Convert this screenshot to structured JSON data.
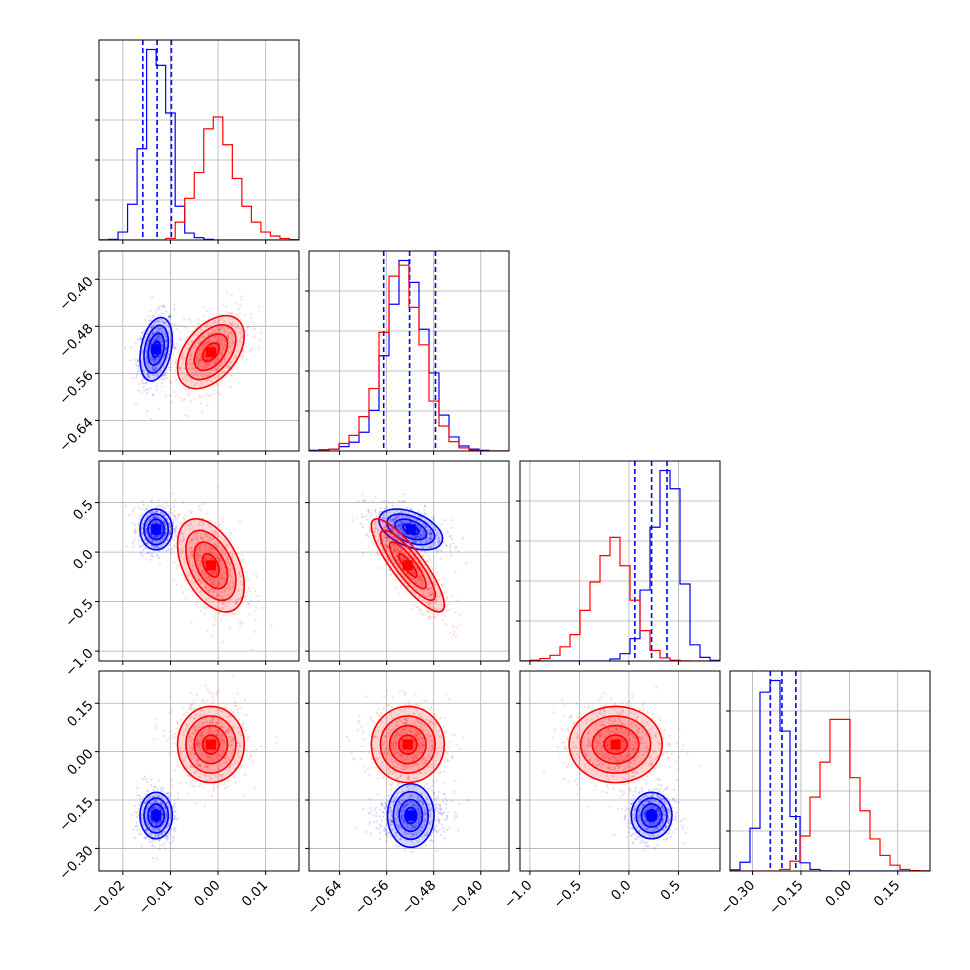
{
  "chart_data": {
    "type": "corner",
    "title": "",
    "legend": "none",
    "grid": true,
    "colors": {
      "blue": "#0000ff",
      "red": "#ff0000",
      "grid": "#b0b0b0",
      "axes": "#000000"
    },
    "params": [
      {
        "range": [
          -0.025,
          0.017
        ],
        "ticks": [
          -0.02,
          -0.01,
          0.0,
          0.01
        ],
        "tick_labels": [
          "−0.02",
          "−0.01",
          "0.00",
          "0.01"
        ]
      },
      {
        "range": [
          -0.692,
          -0.352
        ],
        "ticks": [
          -0.64,
          -0.56,
          -0.48,
          -0.4
        ],
        "tick_labels": [
          "−0.64",
          "−0.56",
          "−0.48",
          "−0.40"
        ]
      },
      {
        "range": [
          -1.1,
          0.92
        ],
        "ticks": [
          -1.0,
          -0.5,
          0.0,
          0.5
        ],
        "tick_labels": [
          "−1.0",
          "−0.5",
          "0.0",
          "0.5"
        ]
      },
      {
        "range": [
          -0.37,
          0.25
        ],
        "ticks": [
          -0.3,
          -0.15,
          0.0,
          0.15
        ],
        "tick_labels": [
          "−0.30",
          "−0.15",
          "0.00",
          "0.15"
        ]
      }
    ],
    "series": [
      {
        "color": "blue",
        "mean": [
          -0.013,
          -0.519,
          0.229,
          -0.198
        ],
        "std": [
          0.0017,
          0.027,
          0.103,
          0.036
        ],
        "corr": [
          [
            1,
            0.3,
            0,
            0
          ],
          [
            0.3,
            1,
            -0.45,
            0
          ],
          [
            0,
            -0.45,
            1,
            0
          ],
          [
            0,
            0,
            0,
            1
          ]
        ],
        "quantiles": [
          [
            -0.0158,
            -0.0128,
            -0.0098
          ],
          [
            -0.565,
            -0.521,
            -0.477
          ],
          [
            0.06,
            0.229,
            0.385
          ],
          [
            -0.245,
            -0.209,
            -0.166
          ]
        ],
        "histograms": [
          {
            "start": -0.025,
            "width": 0.002,
            "counts": [
              1,
              3,
              40,
              180,
              460,
              960,
              880,
              640,
              170,
              35,
              12,
              3,
              0,
              0,
              0,
              0,
              0,
              0,
              0,
              0,
              0
            ]
          },
          {
            "start": -0.692,
            "width": 0.017,
            "counts": [
              2,
              4,
              6,
              14,
              28,
              60,
              130,
              305,
              470,
              610,
              540,
              390,
              250,
              115,
              45,
              16,
              6,
              2,
              0,
              0
            ]
          },
          {
            "start": -1.1,
            "width": 0.101,
            "counts": [
              0,
              0,
              0,
              0,
              0,
              0,
              0,
              0,
              0,
              10,
              36,
              110,
              350,
              660,
              940,
              850,
              380,
              80,
              18,
              3
            ]
          },
          {
            "start": -0.37,
            "width": 0.031,
            "counts": [
              6,
              45,
              220,
              920,
              980,
              720,
              280,
              42,
              8,
              1,
              0,
              0,
              0,
              0,
              0,
              0,
              0,
              0,
              0,
              0
            ]
          }
        ]
      },
      {
        "color": "red",
        "mean": [
          -0.0015,
          -0.524,
          -0.134,
          0.022
        ],
        "std": [
          0.0035,
          0.031,
          0.235,
          0.059
        ],
        "corr": [
          [
            1,
            0.45,
            -0.45,
            0
          ],
          [
            0.45,
            1,
            -0.85,
            0
          ],
          [
            -0.45,
            -0.85,
            1,
            0
          ],
          [
            0,
            0,
            0,
            1
          ]
        ],
        "quantiles": [],
        "histograms": [
          {
            "start": -0.025,
            "width": 0.002,
            "counts": [
              0,
              0,
              0,
              0,
              0,
              0,
              0,
              8,
              90,
              210,
              340,
              560,
              620,
              480,
              310,
              170,
              90,
              40,
              20,
              8,
              2
            ]
          },
          {
            "start": -0.692,
            "width": 0.017,
            "counts": [
              0,
              4,
              6,
              24,
              50,
              110,
              200,
              380,
              560,
              595,
              460,
              340,
              160,
              80,
              30,
              10,
              3,
              0,
              0,
              0
            ]
          },
          {
            "start": -1.1,
            "width": 0.101,
            "counts": [
              0,
              4,
              12,
              28,
              70,
              130,
              250,
              390,
              520,
              610,
              470,
              300,
              150,
              52,
              15,
              4,
              1,
              0,
              0,
              0
            ]
          },
          {
            "start": -0.37,
            "width": 0.031,
            "counts": [
              0,
              0,
              0,
              0,
              0,
              8,
              50,
              180,
              380,
              560,
              780,
              780,
              480,
              310,
              165,
              80,
              30,
              8,
              2,
              1
            ]
          }
        ]
      }
    ]
  }
}
